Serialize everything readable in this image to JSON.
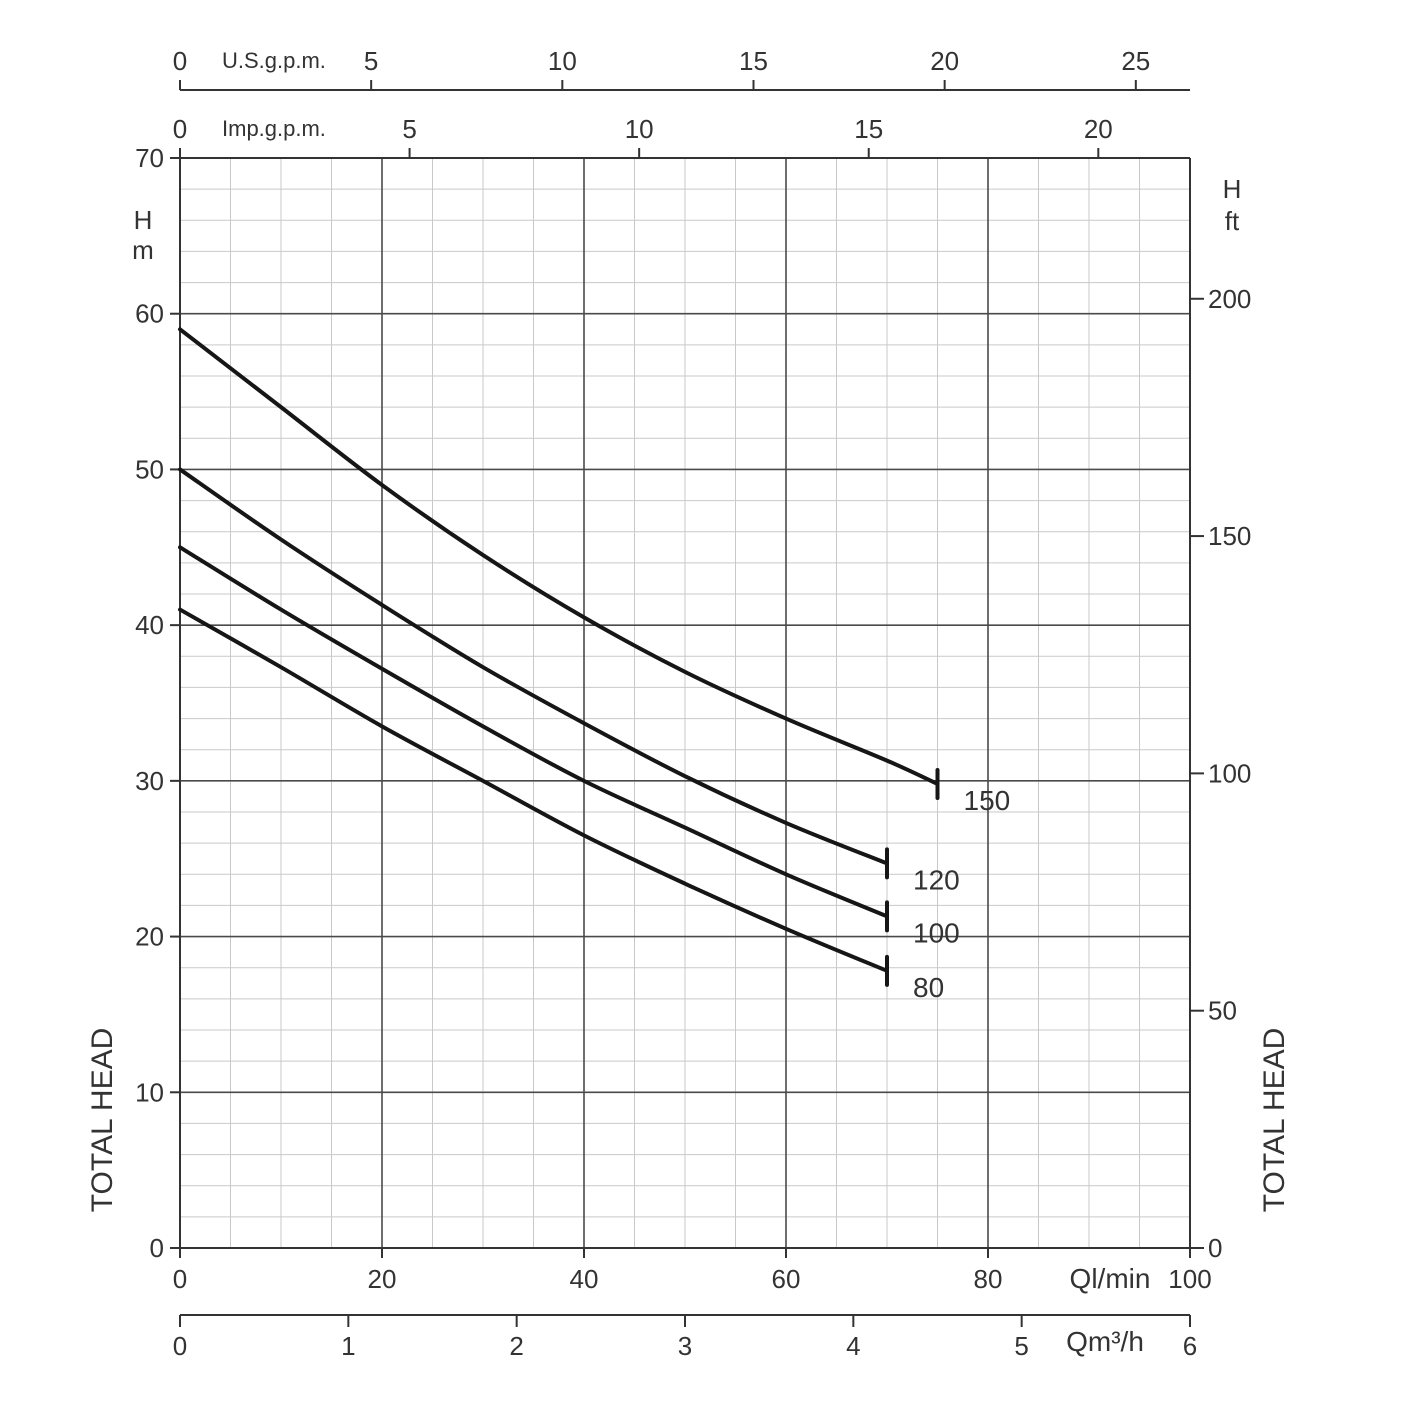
{
  "chart_data": {
    "type": "line",
    "x_axis": {
      "label": "Ql/min",
      "range": [
        0,
        100
      ],
      "ticks": [
        "0",
        "20",
        "40",
        "60",
        "80",
        "100"
      ]
    },
    "y_axis_left": {
      "unit_symbol": "H",
      "unit": "m",
      "label": "TOTAL HEAD",
      "range": [
        0,
        70
      ],
      "ticks": [
        "0",
        "10",
        "20",
        "30",
        "40",
        "50",
        "60",
        "70"
      ]
    },
    "y_axis_right": {
      "unit_symbol": "H",
      "unit": "ft",
      "label": "TOTAL HEAD",
      "ticks": [
        "0",
        "50",
        "100",
        "150",
        "200"
      ],
      "tick_values_ft": [
        0,
        50,
        100,
        150,
        200
      ]
    },
    "secondary_x_axes": [
      {
        "id": "usgpm",
        "label": "U.S.g.p.m.",
        "ticks": [
          "0",
          "5",
          "10",
          "15",
          "20",
          "25"
        ],
        "tick_values": [
          0,
          5,
          10,
          15,
          20,
          25
        ]
      },
      {
        "id": "impgpm",
        "label": "Imp.g.p.m.",
        "ticks": [
          "0",
          "5",
          "10",
          "15",
          "20"
        ],
        "tick_values": [
          0,
          5,
          10,
          15,
          20
        ]
      },
      {
        "id": "m3h",
        "label": "Qm³/h",
        "ticks": [
          "0",
          "1",
          "2",
          "3",
          "4",
          "5",
          "6"
        ],
        "tick_values": [
          0,
          1,
          2,
          3,
          4,
          5,
          6
        ]
      }
    ],
    "grid": true,
    "series": [
      {
        "name": "150",
        "x": [
          0,
          10,
          20,
          30,
          40,
          50,
          60,
          70,
          75
        ],
        "y": [
          59,
          54,
          49,
          44.5,
          40.5,
          37,
          34,
          31.3,
          29.8
        ]
      },
      {
        "name": "120",
        "x": [
          0,
          10,
          20,
          30,
          40,
          50,
          60,
          70
        ],
        "y": [
          50,
          45.5,
          41.3,
          37.3,
          33.7,
          30.3,
          27.3,
          24.7
        ]
      },
      {
        "name": "100",
        "x": [
          0,
          10,
          20,
          30,
          40,
          50,
          60,
          70
        ],
        "y": [
          45,
          41,
          37.2,
          33.5,
          30,
          27,
          24,
          21.3
        ]
      },
      {
        "name": "80",
        "x": [
          0,
          10,
          20,
          30,
          40,
          50,
          60,
          70
        ],
        "y": [
          41,
          37.3,
          33.5,
          30,
          26.5,
          23.4,
          20.5,
          17.8
        ]
      }
    ]
  }
}
